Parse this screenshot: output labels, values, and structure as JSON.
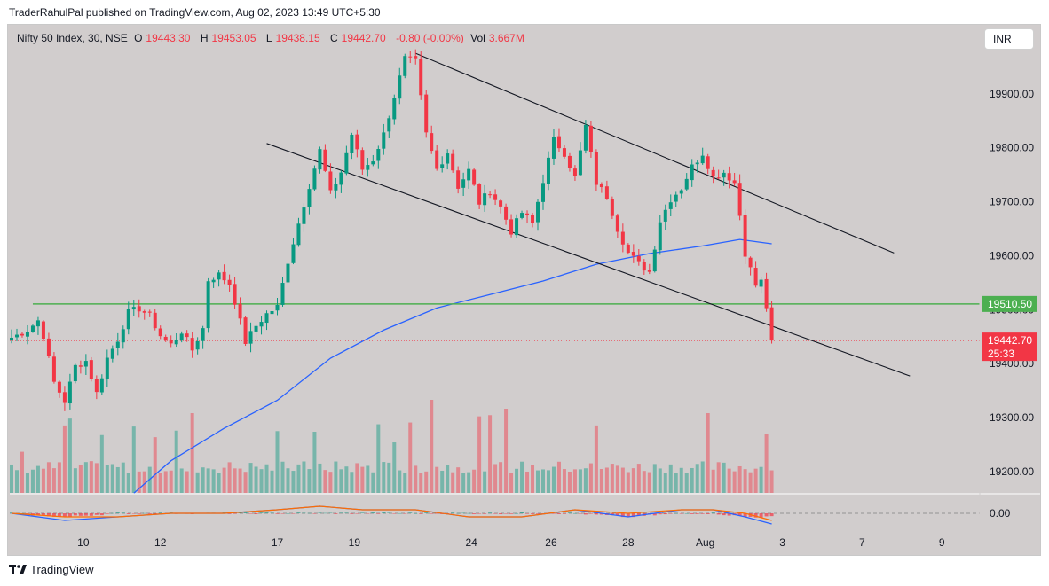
{
  "publish_line": "TraderRahulPal published on TradingView.com, Aug 02, 2023 13:49 UTC+5:30",
  "legend": {
    "symbol": "Nifty 50 Index, 30, NSE",
    "o_label": "O",
    "o_value": "19443.30",
    "h_label": "H",
    "h_value": "19453.05",
    "l_label": "L",
    "l_value": "19438.15",
    "c_label": "C",
    "c_value": "19442.70",
    "change": "-0.80 (-0.00%)",
    "vol_label": "Vol",
    "vol_value": "3.667M"
  },
  "currency": "INR",
  "footer_brand": "TradingView",
  "colors": {
    "up": "#089981",
    "down": "#f23645",
    "sma": "#2962ff",
    "support": "#4caf50",
    "macd": "#2962ff",
    "signal": "#ff6d00",
    "trendline": "#131722",
    "background": "#d1cdcd"
  },
  "chart_data": {
    "type": "candlestick",
    "symbol": "Nifty 50 Index",
    "interval": "30",
    "exchange": "NSE",
    "y_axis": {
      "ticks": [
        "19200.00",
        "19300.00",
        "19400.00",
        "19500.00",
        "19600.00",
        "19700.00",
        "19800.00",
        "19900.00"
      ],
      "ylim": [
        19157,
        19995
      ]
    },
    "x_axis": {
      "ticks": [
        "10",
        "12",
        "17",
        "19",
        "24",
        "26",
        "28",
        "Aug",
        "3",
        "7",
        "9"
      ]
    },
    "price_path": [
      [
        0,
        19448
      ],
      [
        3,
        19462
      ],
      [
        5,
        19480
      ],
      [
        6,
        19452
      ],
      [
        8,
        19365
      ],
      [
        10,
        19330
      ],
      [
        12,
        19395
      ],
      [
        14,
        19405
      ],
      [
        16,
        19345
      ],
      [
        18,
        19410
      ],
      [
        20,
        19445
      ],
      [
        22,
        19495
      ],
      [
        24,
        19502
      ],
      [
        26,
        19488
      ],
      [
        28,
        19452
      ],
      [
        30,
        19435
      ],
      [
        32,
        19460
      ],
      [
        34,
        19425
      ],
      [
        36,
        19465
      ],
      [
        37,
        19555
      ],
      [
        39,
        19565
      ],
      [
        41,
        19548
      ],
      [
        42,
        19515
      ],
      [
        44,
        19440
      ],
      [
        46,
        19470
      ],
      [
        48,
        19492
      ],
      [
        50,
        19505
      ],
      [
        52,
        19590
      ],
      [
        54,
        19660
      ],
      [
        56,
        19730
      ],
      [
        58,
        19795
      ],
      [
        60,
        19715
      ],
      [
        62,
        19755
      ],
      [
        64,
        19825
      ],
      [
        66,
        19760
      ],
      [
        68,
        19778
      ],
      [
        70,
        19825
      ],
      [
        72,
        19895
      ],
      [
        74,
        19965
      ],
      [
        76,
        19960
      ],
      [
        78,
        19825
      ],
      [
        80,
        19760
      ],
      [
        82,
        19792
      ],
      [
        84,
        19728
      ],
      [
        86,
        19758
      ],
      [
        88,
        19698
      ],
      [
        90,
        19720
      ],
      [
        92,
        19690
      ],
      [
        94,
        19645
      ],
      [
        96,
        19680
      ],
      [
        98,
        19660
      ],
      [
        100,
        19740
      ],
      [
        102,
        19815
      ],
      [
        104,
        19790
      ],
      [
        106,
        19745
      ],
      [
        108,
        19840
      ],
      [
        110,
        19735
      ],
      [
        112,
        19710
      ],
      [
        114,
        19650
      ],
      [
        116,
        19605
      ],
      [
        118,
        19585
      ],
      [
        120,
        19570
      ],
      [
        122,
        19665
      ],
      [
        124,
        19705
      ],
      [
        126,
        19725
      ],
      [
        128,
        19765
      ],
      [
        130,
        19790
      ],
      [
        132,
        19745
      ],
      [
        134,
        19755
      ],
      [
        136,
        19735
      ],
      [
        137,
        19675
      ],
      [
        138,
        19605
      ],
      [
        140,
        19545
      ],
      [
        141,
        19552
      ],
      [
        142,
        19505
      ],
      [
        143,
        19442.7
      ]
    ],
    "candle_count": 144,
    "current_price": "19442.70",
    "countdown": "25:33",
    "support_level": "19510.50",
    "support_level_value": 19510.5,
    "trend_channel": {
      "upper": [
        [
          76,
          19975
        ],
        [
          166,
          19605
        ]
      ],
      "lower": [
        [
          48,
          19808
        ],
        [
          169,
          19377
        ]
      ]
    },
    "sma": {
      "color": "#2962ff",
      "points": [
        [
          23,
          19160
        ],
        [
          30,
          19220
        ],
        [
          40,
          19280
        ],
        [
          50,
          19332
        ],
        [
          60,
          19410
        ],
        [
          70,
          19462
        ],
        [
          80,
          19503
        ],
        [
          90,
          19528
        ],
        [
          100,
          19553
        ],
        [
          110,
          19584
        ],
        [
          120,
          19604
        ],
        [
          130,
          19618
        ],
        [
          137,
          19630
        ],
        [
          143,
          19622
        ]
      ]
    },
    "volume": {
      "label_position": "bottom",
      "max": 1
    },
    "macd": {
      "zero_label": "0.00",
      "macd_points": [
        [
          0,
          0
        ],
        [
          10,
          -2
        ],
        [
          20,
          -1
        ],
        [
          30,
          0
        ],
        [
          40,
          0
        ],
        [
          50,
          1
        ],
        [
          58,
          2
        ],
        [
          66,
          1
        ],
        [
          76,
          1
        ],
        [
          86,
          -1
        ],
        [
          96,
          -1
        ],
        [
          106,
          1
        ],
        [
          116,
          -1
        ],
        [
          126,
          1
        ],
        [
          132,
          1
        ],
        [
          138,
          -1
        ],
        [
          143,
          -3
        ]
      ],
      "signal_points": [
        [
          0,
          0
        ],
        [
          10,
          -1
        ],
        [
          20,
          -1
        ],
        [
          30,
          0
        ],
        [
          40,
          0
        ],
        [
          50,
          1
        ],
        [
          58,
          2
        ],
        [
          66,
          1
        ],
        [
          76,
          1
        ],
        [
          86,
          -1
        ],
        [
          96,
          -1
        ],
        [
          106,
          1
        ],
        [
          116,
          0
        ],
        [
          126,
          1
        ],
        [
          132,
          1
        ],
        [
          138,
          0
        ],
        [
          143,
          -2
        ]
      ]
    }
  }
}
